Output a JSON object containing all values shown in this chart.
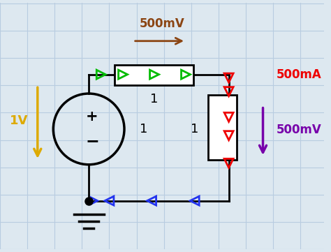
{
  "bg_color": "#dde8f0",
  "grid_color": "#b8cce0",
  "wire_color": "#000000",
  "green_color": "#00bb00",
  "red_color": "#ee0000",
  "blue_color": "#2233ee",
  "brown_color": "#8B4513",
  "purple_color": "#7700aa",
  "yellow_color": "#ddaa00",
  "label_1v": "1V",
  "label_500mA": "500mA",
  "label_500mV_top": "500mV",
  "label_500mV_right": "500mV",
  "label_1_top": "1",
  "label_1_mid": "1",
  "label_1_right": "1"
}
